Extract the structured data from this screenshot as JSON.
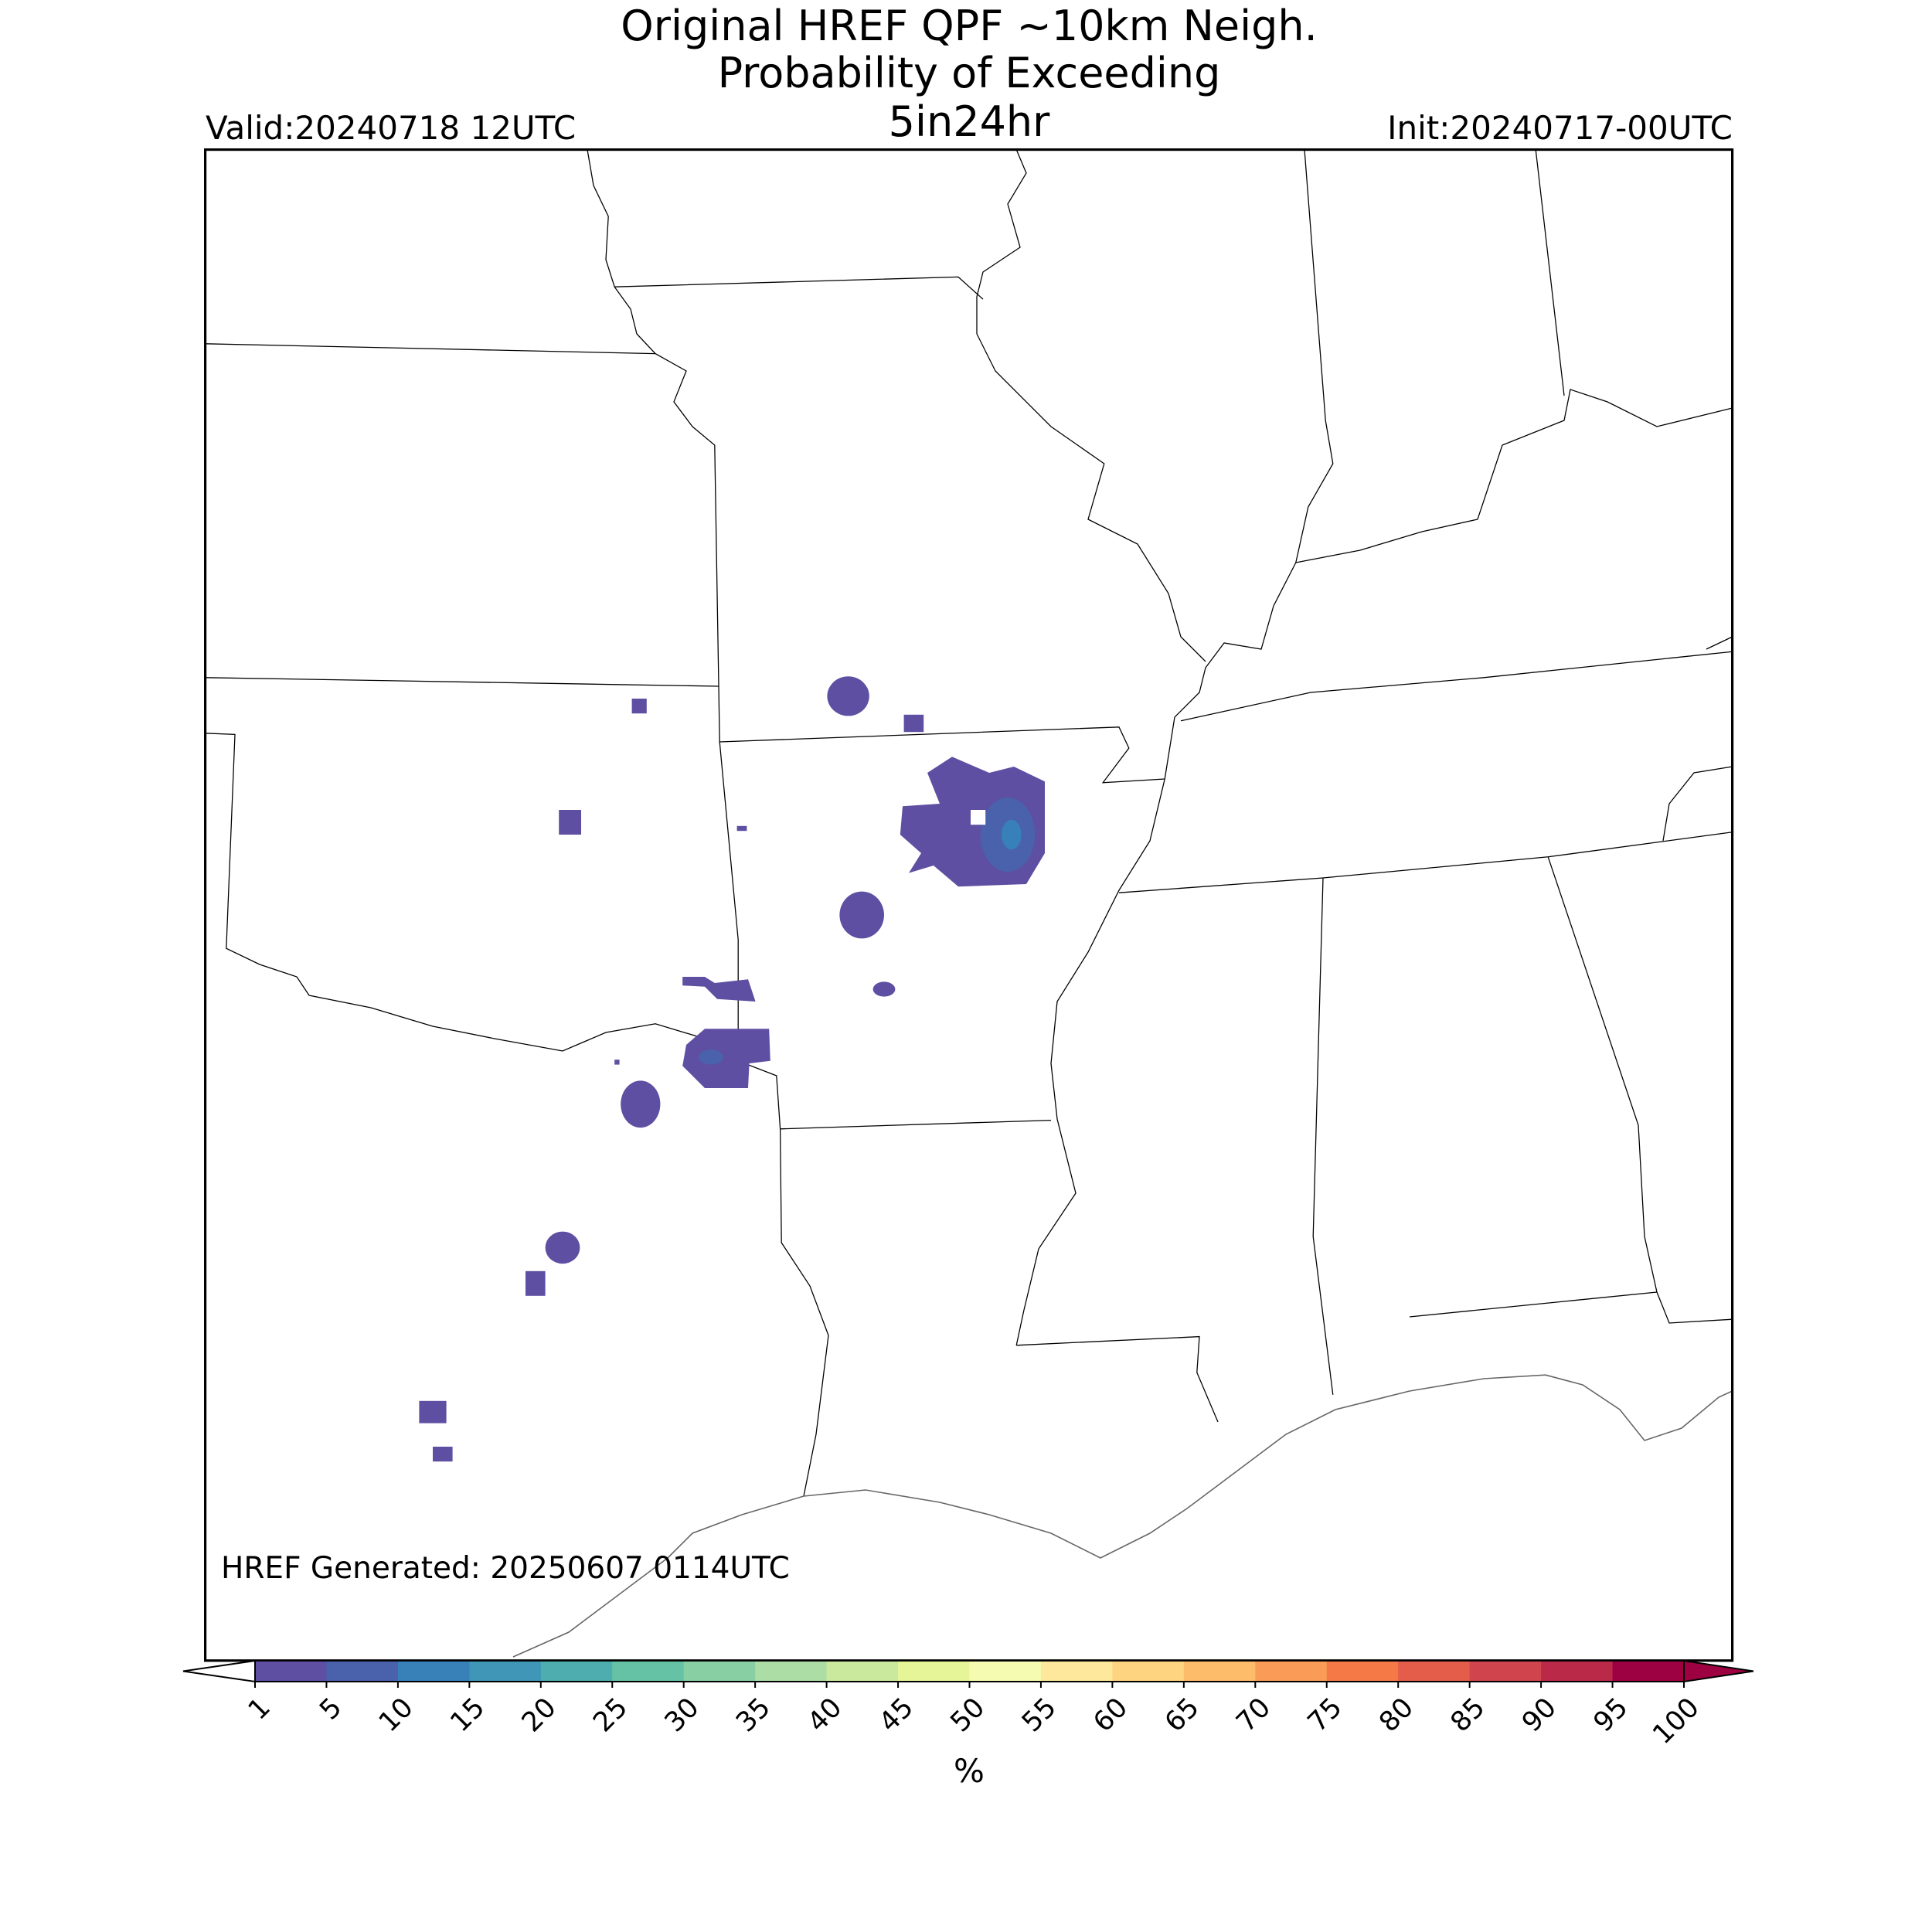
{
  "title": [
    "Original HREF QPF ~10km Neigh.",
    "Probability of Exceeding",
    "5in24hr"
  ],
  "valid": "Valid:20240718 12UTC",
  "init": "Init:20240717-00UTC",
  "generated": "HREF Generated: 20250607 0114UTC",
  "colorbar": {
    "label": "%",
    "ticks": [
      1,
      5,
      10,
      15,
      20,
      25,
      30,
      35,
      40,
      45,
      50,
      55,
      60,
      65,
      70,
      75,
      80,
      85,
      90,
      95,
      100
    ],
    "colors": [
      "#5e4fa2",
      "#4a62ab",
      "#3780b8",
      "#3f96b7",
      "#4eaeaf",
      "#66c2a5",
      "#88cfa4",
      "#abdda4",
      "#cbe99d",
      "#e6f598",
      "#f6fbb2",
      "#fee89b",
      "#fed481",
      "#fdbc6a",
      "#fa9c58",
      "#f57847",
      "#e45d4a",
      "#d0444e",
      "#bb2949",
      "#9e0142"
    ],
    "extend_min_color": "#ffffff",
    "extend_max_color": "#9e0142"
  }
}
